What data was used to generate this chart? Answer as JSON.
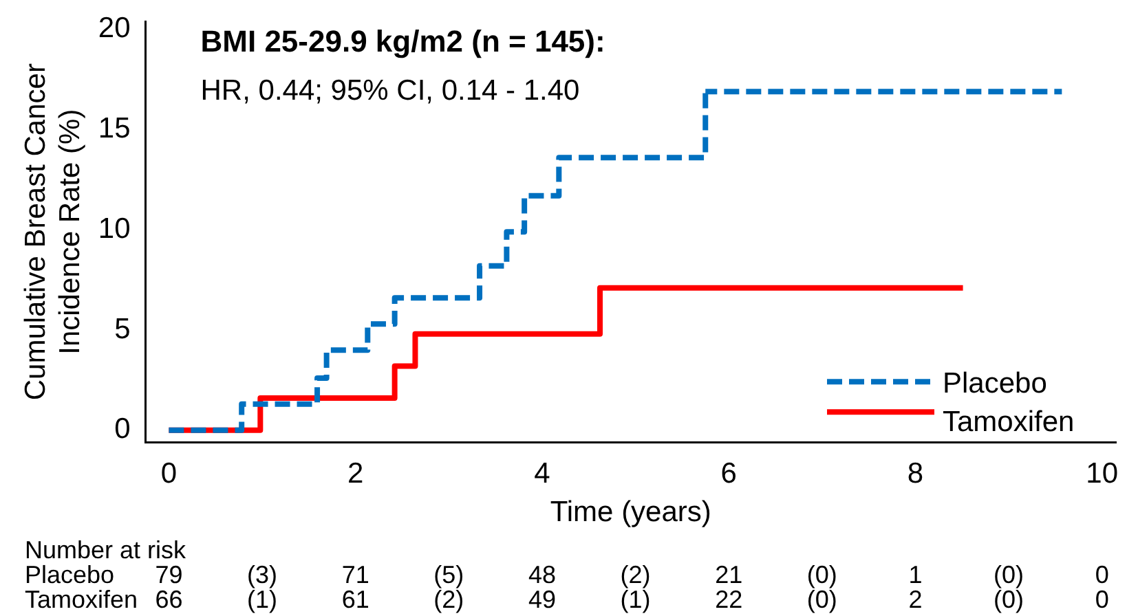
{
  "chart_data": {
    "type": "step",
    "title": "BMI 25-29.9 kg/m2 (n = 145):",
    "subtitle": "HR, 0.44; 95% CI, 0.14 - 1.40",
    "xlabel": "Time (years)",
    "ylabel": "Cumulative Breast Cancer Incidence Rate (%)",
    "series": [
      {
        "name": "Placebo",
        "color": "#0070c0",
        "line_style": "dashed",
        "x": [
          0,
          0.78,
          1.59,
          1.69,
          2.13,
          2.42,
          3.33,
          3.62,
          3.81,
          4.18,
          5.75,
          9.57
        ],
        "values": [
          0,
          1.3,
          2.6,
          4.0,
          5.3,
          6.6,
          8.2,
          9.9,
          11.7,
          13.6,
          16.9,
          16.9
        ]
      },
      {
        "name": "Tamoxifen",
        "color": "#ff0000",
        "line_style": "solid",
        "x": [
          0,
          0.98,
          2.42,
          2.64,
          4.62,
          8.51
        ],
        "values": [
          0,
          1.6,
          3.2,
          4.8,
          7.1,
          7.1
        ]
      }
    ],
    "xlim": [
      -0.25,
      10.15
    ],
    "xticks": [
      0,
      2,
      4,
      6,
      8,
      10
    ],
    "ylim": [
      -0.6,
      20.4
    ],
    "yticks": [
      0,
      5,
      10,
      15,
      20
    ],
    "grid": false,
    "legend": "bottom right",
    "marker": "none",
    "annotations": [
      "Number at risk",
      "Placebo 79 (3) 71 (5) 48 (2) 21 (0) 1 (0) 0",
      "Tamoxifen 66 (1) 61 (2) 49 (1) 22 (0) 2 (0) 0"
    ]
  }
}
